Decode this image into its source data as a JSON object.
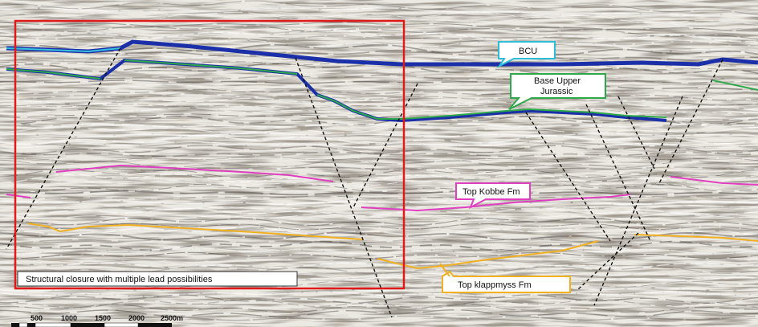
{
  "image": {
    "description_text": "",
    "colors": {
      "background": "#e9e6e0",
      "reflector_dark": "#4a4440",
      "reflector_light": "#ffffff",
      "bcu_horizon": "#1a2fa8",
      "bcu_callout_border": "#2bbcd8",
      "base_upper_jurassic_horizon": "#2fa84a",
      "kobbe_horizon": "#e040c0",
      "klappmyss_horizon": "#f0b020",
      "closure_box": "#e01a1a",
      "faults": "#111111"
    }
  },
  "callouts": {
    "bcu": "BCU",
    "base_upper_jurassic_line1": "Base Upper",
    "base_upper_jurassic_line2": "Jurassic",
    "top_kobbe": "Top Kobbe Fm",
    "top_klappmyss": "Top klappmyss Fm"
  },
  "closure_box": {
    "caption": "Structural closure with multiple lead possibilities"
  },
  "scale_bar": {
    "labels": [
      "500",
      "1000",
      "1500",
      "2000",
      "2500m"
    ]
  }
}
